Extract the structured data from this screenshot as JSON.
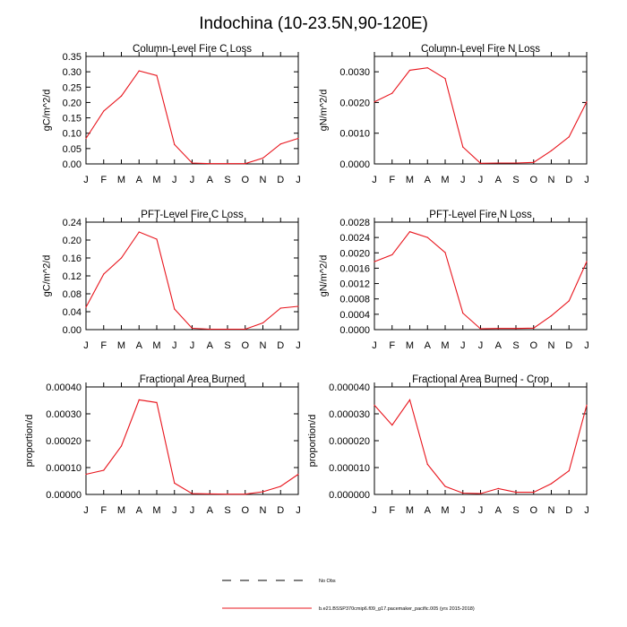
{
  "title": "Indochina (10-23.5N,90-120E)",
  "legend": {
    "obs_label": "No Obs",
    "model_label": "b.e21.BSSP370cmip6.f09_g17.pacemaker_pacific.005 (yrs 2015-2018)",
    "model_color": "#e8141c",
    "obs_color": "#000000"
  },
  "chart_data": [
    {
      "type": "line",
      "title": "Column-Level Fire C Loss",
      "ylabel": "gC/m^2/d",
      "x": [
        "J",
        "F",
        "M",
        "A",
        "M",
        "J",
        "J",
        "A",
        "S",
        "O",
        "N",
        "D",
        "J"
      ],
      "ylim": [
        0,
        0.35
      ],
      "yticks": [
        "0.00",
        "0.05",
        "0.10",
        "0.15",
        "0.20",
        "0.25",
        "0.30",
        "0.35"
      ],
      "series": [
        {
          "values": [
            0.083,
            0.172,
            0.221,
            0.303,
            0.288,
            0.063,
            0.003,
            0.001,
            0.001,
            0.001,
            0.019,
            0.065,
            0.083
          ]
        }
      ]
    },
    {
      "type": "line",
      "title": "Column-Level Fire N Loss",
      "ylabel": "gN/m^2/d",
      "x": [
        "J",
        "F",
        "M",
        "A",
        "M",
        "J",
        "J",
        "A",
        "S",
        "O",
        "N",
        "D",
        "J"
      ],
      "ylim": [
        0,
        0.0035
      ],
      "yticks": [
        "0.0000",
        "0.0010",
        "0.0020",
        "0.0030"
      ],
      "series": [
        {
          "values": [
            0.00202,
            0.0023,
            0.00305,
            0.00313,
            0.00278,
            0.00055,
            2e-05,
            3e-05,
            3e-05,
            5e-05,
            0.00043,
            0.00088,
            0.00202
          ]
        }
      ]
    },
    {
      "type": "line",
      "title": "PFT-Level Fire C Loss",
      "ylabel": "gC/m^2/d",
      "x": [
        "J",
        "F",
        "M",
        "A",
        "M",
        "J",
        "J",
        "A",
        "S",
        "O",
        "N",
        "D",
        "J"
      ],
      "ylim": [
        0,
        0.24
      ],
      "yticks": [
        "0.00",
        "0.04",
        "0.08",
        "0.12",
        "0.16",
        "0.20",
        "0.24"
      ],
      "series": [
        {
          "values": [
            0.05,
            0.124,
            0.16,
            0.218,
            0.202,
            0.046,
            0.003,
            0.001,
            0.001,
            0.001,
            0.015,
            0.048,
            0.052
          ]
        }
      ]
    },
    {
      "type": "line",
      "title": "PFT-Level Fire N Loss",
      "ylabel": "gN/m^2/d",
      "x": [
        "J",
        "F",
        "M",
        "A",
        "M",
        "J",
        "J",
        "A",
        "S",
        "O",
        "N",
        "D",
        "J"
      ],
      "ylim": [
        0,
        0.0028
      ],
      "yticks": [
        "0.0000",
        "0.0004",
        "0.0008",
        "0.0012",
        "0.0016",
        "0.0020",
        "0.0024",
        "0.0028"
      ],
      "series": [
        {
          "values": [
            0.00177,
            0.00195,
            0.00255,
            0.0024,
            0.00201,
            0.00043,
            2e-05,
            3e-05,
            3e-05,
            4e-05,
            0.00036,
            0.00075,
            0.00177
          ]
        }
      ]
    },
    {
      "type": "line",
      "title": "Fractional Area Burned",
      "ylabel": "proportion/d",
      "x": [
        "J",
        "F",
        "M",
        "A",
        "M",
        "J",
        "J",
        "A",
        "S",
        "O",
        "N",
        "D",
        "J"
      ],
      "ylim": [
        0,
        0.0004
      ],
      "yticks": [
        "0.00000",
        "0.00010",
        "0.00020",
        "0.00030",
        "0.00040"
      ],
      "series": [
        {
          "values": [
            7.5e-05,
            9e-05,
            0.00018,
            0.000352,
            0.000342,
            4.2e-05,
            3e-06,
            2e-06,
            1e-06,
            1e-06,
            1e-05,
            3e-05,
            7.5e-05
          ]
        }
      ]
    },
    {
      "type": "line",
      "title": "Fractional Area Burned - Crop",
      "ylabel": "proportion/d",
      "x": [
        "J",
        "F",
        "M",
        "A",
        "M",
        "J",
        "J",
        "A",
        "S",
        "O",
        "N",
        "D",
        "J"
      ],
      "ylim": [
        0,
        4e-05
      ],
      "yticks": [
        "0.000000",
        "0.000010",
        "0.000020",
        "0.000030",
        "0.000040"
      ],
      "series": [
        {
          "values": [
            3.32e-05,
            2.58e-05,
            3.52e-05,
            1.12e-05,
            3e-06,
            5e-07,
            3e-07,
            2.2e-06,
            8e-07,
            8e-07,
            4e-06,
            8.8e-06,
            3.32e-05
          ]
        }
      ]
    }
  ]
}
